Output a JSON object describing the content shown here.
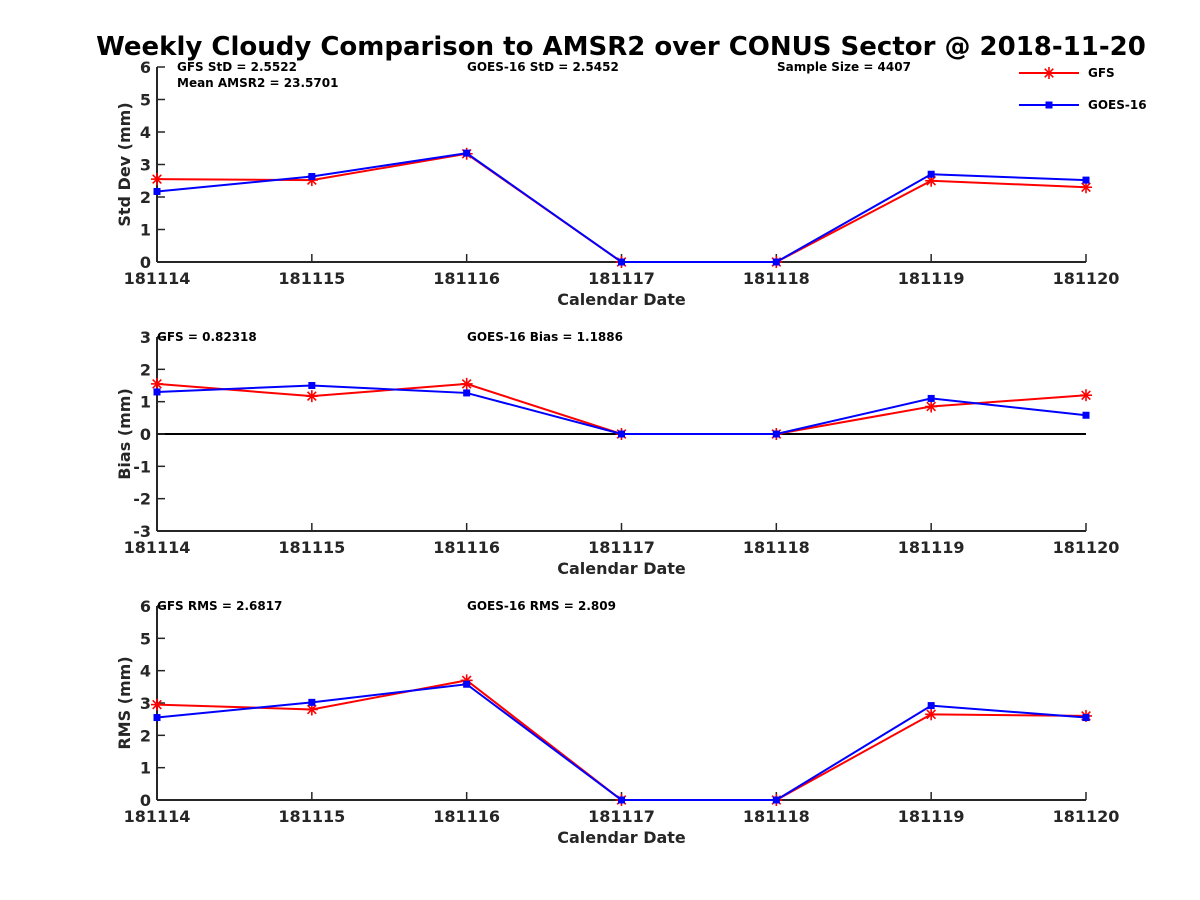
{
  "figure_title": "Weekly Cloudy Comparison to AMSR2 over CONUS Sector @ 2018-11-20",
  "legend": [
    {
      "name": "GFS",
      "color": "#ff0000",
      "marker": "asterisk"
    },
    {
      "name": "GOES-16",
      "color": "#0000ff",
      "marker": "square"
    }
  ],
  "chart_data": [
    {
      "type": "line",
      "ylabel": "Std Dev (mm)",
      "xlabel": "Calendar Date",
      "categories": [
        "181114",
        "181115",
        "181116",
        "181117",
        "181118",
        "181119",
        "181120"
      ],
      "ylim": [
        0,
        6
      ],
      "yticks": [
        "0",
        "1",
        "2",
        "3",
        "4",
        "5",
        "6"
      ],
      "zero_line": false,
      "series": [
        {
          "name": "GFS",
          "values": [
            2.55,
            2.52,
            3.33,
            0,
            0,
            2.5,
            2.3
          ]
        },
        {
          "name": "GOES-16",
          "values": [
            2.17,
            2.63,
            3.35,
            0,
            0,
            2.7,
            2.52
          ]
        }
      ],
      "annotations": {
        "left": "GFS StD = 2.5522",
        "left2": "Mean AMSR2 = 23.5701",
        "mid": "GOES-16 StD = 2.5452",
        "right": "Sample Size = 4407"
      }
    },
    {
      "type": "line",
      "ylabel": "Bias (mm)",
      "xlabel": "Calendar Date",
      "categories": [
        "181114",
        "181115",
        "181116",
        "181117",
        "181118",
        "181119",
        "181120"
      ],
      "ylim": [
        -3,
        3
      ],
      "yticks": [
        "-3",
        "-2",
        "-1",
        "0",
        "1",
        "2",
        "3"
      ],
      "zero_line": true,
      "series": [
        {
          "name": "GFS",
          "values": [
            1.55,
            1.17,
            1.55,
            0,
            0,
            0.85,
            1.2
          ]
        },
        {
          "name": "GOES-16",
          "values": [
            1.3,
            1.5,
            1.27,
            0,
            0,
            1.1,
            0.58
          ]
        }
      ],
      "annotations": {
        "left": "GFS = 0.82318",
        "mid": "GOES-16 Bias  = 1.1886"
      }
    },
    {
      "type": "line",
      "ylabel": "RMS (mm)",
      "xlabel": "Calendar Date",
      "categories": [
        "181114",
        "181115",
        "181116",
        "181117",
        "181118",
        "181119",
        "181120"
      ],
      "ylim": [
        0,
        6
      ],
      "yticks": [
        "0",
        "1",
        "2",
        "3",
        "4",
        "5",
        "6"
      ],
      "zero_line": false,
      "series": [
        {
          "name": "GFS",
          "values": [
            2.95,
            2.8,
            3.7,
            0,
            0,
            2.65,
            2.6
          ]
        },
        {
          "name": "GOES-16",
          "values": [
            2.55,
            3.02,
            3.58,
            0,
            0,
            2.92,
            2.55
          ]
        }
      ],
      "annotations": {
        "left": "GFS RMS = 2.6817",
        "mid": "GOES-16 RMS = 2.809"
      }
    }
  ]
}
